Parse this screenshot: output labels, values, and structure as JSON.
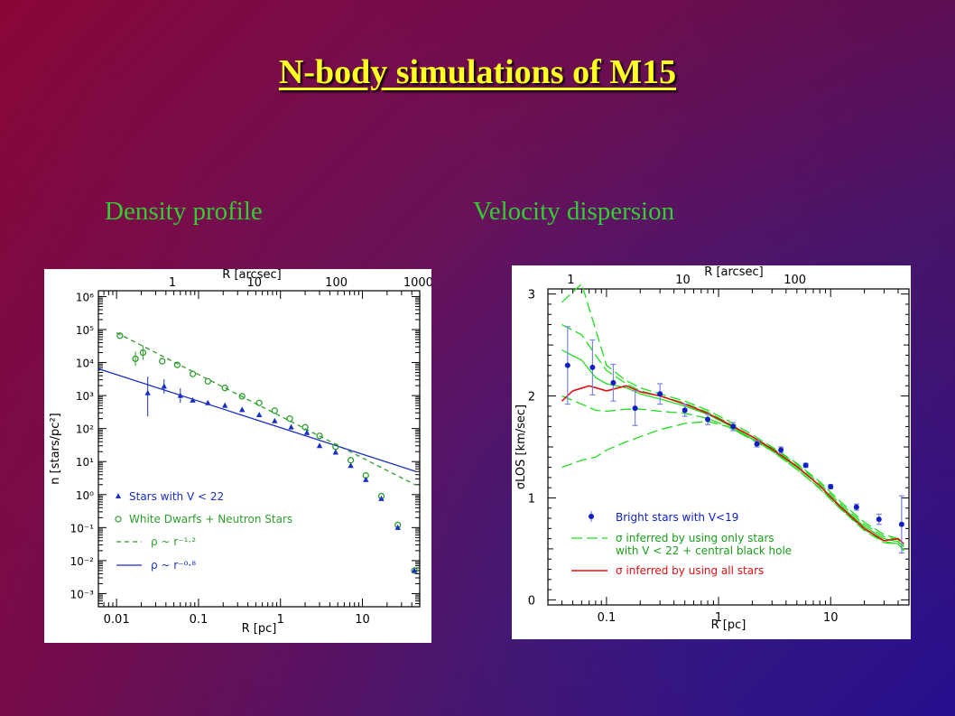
{
  "slide": {
    "title": "N-body simulations of M15",
    "left_caption": "Density profile",
    "right_caption": "Velocity dispersion"
  },
  "colors": {
    "title": "#ffff22",
    "caption": "#33cc33",
    "stars": "#1a2fc4",
    "wd": "#2e9e2e",
    "bh_model": "#22dd22",
    "all_model": "#dd1111",
    "bright": "#1020c0"
  },
  "chart_data": [
    {
      "type": "scatter",
      "title": "",
      "xlabel": "R [pc]",
      "ylabel": "n [stars/pc²]",
      "top_xlabel": "R [arcsec]",
      "xscale": "log",
      "yscale": "log",
      "xlim": [
        0.006,
        50
      ],
      "ylim": [
        0.0004,
        1500000.0
      ],
      "xticks": [
        "0.01",
        "0.1",
        "1",
        "10"
      ],
      "yticks": [
        "10⁻³",
        "10⁻²",
        "10⁻¹",
        "10⁰",
        "10¹",
        "10²",
        "10³",
        "10⁴",
        "10⁵",
        "10⁶"
      ],
      "top_ticks": [
        "1",
        "10",
        "100",
        "1000"
      ],
      "legend_position": "bottom-left",
      "series": [
        {
          "name": "Stars with V < 22",
          "marker": "triangle",
          "x": [
            0.024,
            0.038,
            0.06,
            0.085,
            0.13,
            0.21,
            0.34,
            0.55,
            0.85,
            1.35,
            2.1,
            3.0,
            4.7,
            7.2,
            11,
            17,
            27,
            43
          ],
          "y": [
            1200,
            1900,
            1000,
            720,
            600,
            500,
            370,
            260,
            170,
            110,
            75,
            30,
            19,
            7.5,
            2.8,
            0.75,
            0.1,
            0.005
          ]
        },
        {
          "name": "White Dwarfs + Neutron Stars",
          "marker": "circle",
          "x": [
            0.011,
            0.017,
            0.021,
            0.036,
            0.055,
            0.085,
            0.13,
            0.21,
            0.34,
            0.55,
            0.85,
            1.3,
            2.0,
            3.0,
            4.7,
            7.2,
            11,
            17,
            27,
            43
          ],
          "y": [
            65000,
            13000,
            20000,
            11000,
            8500,
            4500,
            2700,
            1700,
            950,
            600,
            350,
            200,
            110,
            60,
            28,
            11,
            3.8,
            0.9,
            0.12,
            0.005
          ]
        },
        {
          "name": "ρ ~ r⁻¹·²",
          "style": "dashed",
          "x": [
            0.01,
            45
          ],
          "y": [
            80000,
            1.93
          ]
        },
        {
          "name": "ρ ~ r⁻⁰·⁸",
          "style": "solid",
          "x": [
            0.006,
            45
          ],
          "y": [
            6500,
            5
          ]
        }
      ]
    },
    {
      "type": "line",
      "title": "",
      "xlabel": "R [pc]",
      "ylabel": "σLOS [km/sec]",
      "top_xlabel": "R [arcsec]",
      "xscale": "log",
      "xlim": [
        0.03,
        50
      ],
      "ylim": [
        -0.05,
        3.05
      ],
      "xticks": [
        "0.1",
        "1",
        "10"
      ],
      "yticks": [
        "0",
        "1",
        "2",
        "3"
      ],
      "top_ticks": [
        "1",
        "10",
        "100"
      ],
      "legend_position": "bottom-left",
      "series": [
        {
          "name": "Bright stars with V<19",
          "marker": "dot",
          "x": [
            0.045,
            0.075,
            0.115,
            0.18,
            0.3,
            0.5,
            0.8,
            1.35,
            2.2,
            3.6,
            6.0,
            10,
            17,
            27,
            43
          ],
          "y": [
            2.3,
            2.28,
            2.13,
            1.88,
            2.02,
            1.86,
            1.77,
            1.7,
            1.53,
            1.47,
            1.32,
            1.11,
            0.91,
            0.79,
            0.74
          ],
          "err": [
            0.38,
            0.27,
            0.18,
            0.17,
            0.1,
            0.06,
            0.05,
            0.04,
            0.03,
            0.03,
            0.02,
            0.02,
            0.03,
            0.05,
            0.28
          ]
        },
        {
          "name": "σ inferred by using only stars",
          "style": "long-dash"
        },
        {
          "name": "with V < 22 + central black hole",
          "style": "none"
        },
        {
          "name": "σ inferred by using all stars",
          "style": "solid",
          "x": [
            0.04,
            0.05,
            0.07,
            0.1,
            0.15,
            0.2,
            0.3,
            0.5,
            0.8,
            1.2,
            2,
            3,
            5,
            8,
            12,
            20,
            30,
            40,
            45
          ],
          "y": [
            1.95,
            2.05,
            2.1,
            2.05,
            2.1,
            2.04,
            2.0,
            1.92,
            1.83,
            1.73,
            1.6,
            1.48,
            1.31,
            1.12,
            0.92,
            0.7,
            0.58,
            0.6,
            0.55
          ]
        }
      ],
      "bh_model_band": {
        "x": [
          0.04,
          0.06,
          0.08,
          0.1,
          0.15,
          0.2,
          0.3,
          0.5,
          0.8,
          1.2,
          2,
          3,
          5,
          8,
          12,
          20,
          30,
          40,
          45
        ],
        "upper": [
          2.92,
          3.1,
          2.65,
          2.3,
          2.15,
          2.08,
          2.02,
          1.95,
          1.86,
          1.76,
          1.62,
          1.5,
          1.34,
          1.16,
          0.97,
          0.76,
          0.64,
          0.6,
          0.55
        ],
        "mid": [
          2.45,
          2.35,
          2.18,
          2.12,
          2.08,
          2.02,
          1.97,
          1.9,
          1.82,
          1.72,
          1.58,
          1.47,
          1.3,
          1.12,
          0.93,
          0.72,
          0.6,
          0.57,
          0.52
        ],
        "lower": [
          1.3,
          1.37,
          1.4,
          1.47,
          1.55,
          1.6,
          1.67,
          1.73,
          1.75,
          1.7,
          1.58,
          1.46,
          1.28,
          1.1,
          0.9,
          0.68,
          0.56,
          0.55,
          0.48
        ],
        "upper2": [
          2.7,
          2.6,
          2.4,
          2.25,
          2.12,
          2.05,
          2.0,
          1.93,
          1.84,
          1.74,
          1.6,
          1.49,
          1.33,
          1.14,
          0.95,
          0.74,
          0.62,
          0.59,
          0.53
        ],
        "lower2": [
          2.0,
          1.92,
          1.86,
          1.85,
          1.87,
          1.87,
          1.85,
          1.83,
          1.78,
          1.7,
          1.57,
          1.46,
          1.28,
          1.09,
          0.9,
          0.69,
          0.57,
          0.55,
          0.49
        ]
      }
    }
  ]
}
